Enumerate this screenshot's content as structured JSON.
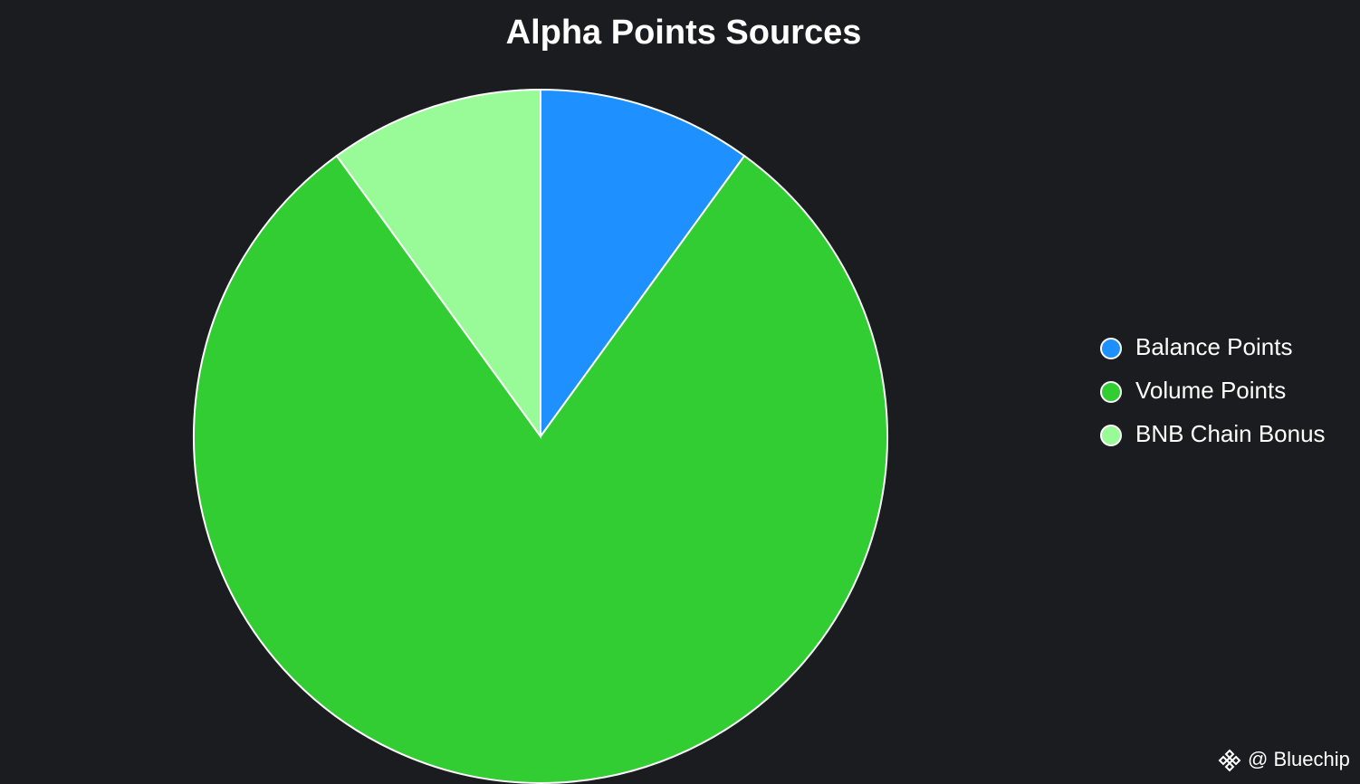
{
  "chart_data": {
    "type": "pie",
    "title": "Alpha Points Sources",
    "categories": [
      "Balance Points",
      "Volume Points",
      "BNB Chain Bonus"
    ],
    "values": [
      10,
      80,
      10
    ],
    "colors": [
      "#1e90ff",
      "#32cd32",
      "#98fb98"
    ],
    "legend": "right"
  },
  "watermark": "@ Bluechip"
}
